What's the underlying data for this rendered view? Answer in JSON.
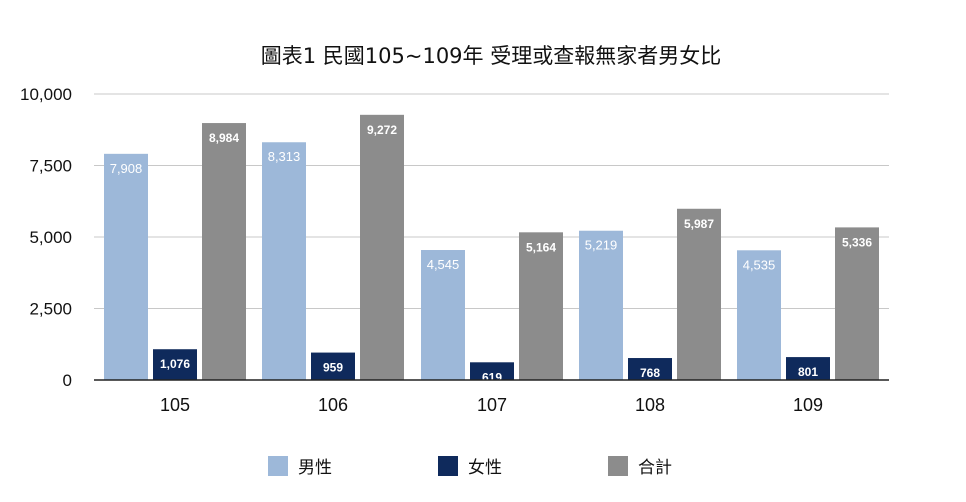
{
  "chart_data": {
    "type": "bar",
    "title": "圖表1 民國105~109年 受理或查報無家者男女比",
    "categories": [
      "105",
      "106",
      "107",
      "108",
      "109"
    ],
    "series": [
      {
        "name": "男性",
        "color": "#9db8d9",
        "values": [
          7908,
          8313,
          4545,
          5219,
          4535
        ]
      },
      {
        "name": "女性",
        "color": "#0f2a5c",
        "values": [
          1076,
          959,
          619,
          768,
          801
        ]
      },
      {
        "name": "合計",
        "color": "#8c8c8c",
        "values": [
          8984,
          9272,
          5164,
          5987,
          5336
        ]
      }
    ],
    "ylim": [
      0,
      10000
    ],
    "yticks": [
      0,
      2500,
      5000,
      7500,
      10000
    ],
    "ytick_labels": [
      "0",
      "2,500",
      "5,000",
      "7,500",
      "10,000"
    ],
    "value_labels": [
      [
        "7,908",
        "8,313",
        "4,545",
        "5,219",
        "4,535"
      ],
      [
        "1,076",
        "959",
        "619",
        "768",
        "801"
      ],
      [
        "8,984",
        "9,272",
        "5,164",
        "5,987",
        "5,336"
      ]
    ],
    "grid": true,
    "legend_position": "bottom",
    "xlabel": "",
    "ylabel": ""
  }
}
